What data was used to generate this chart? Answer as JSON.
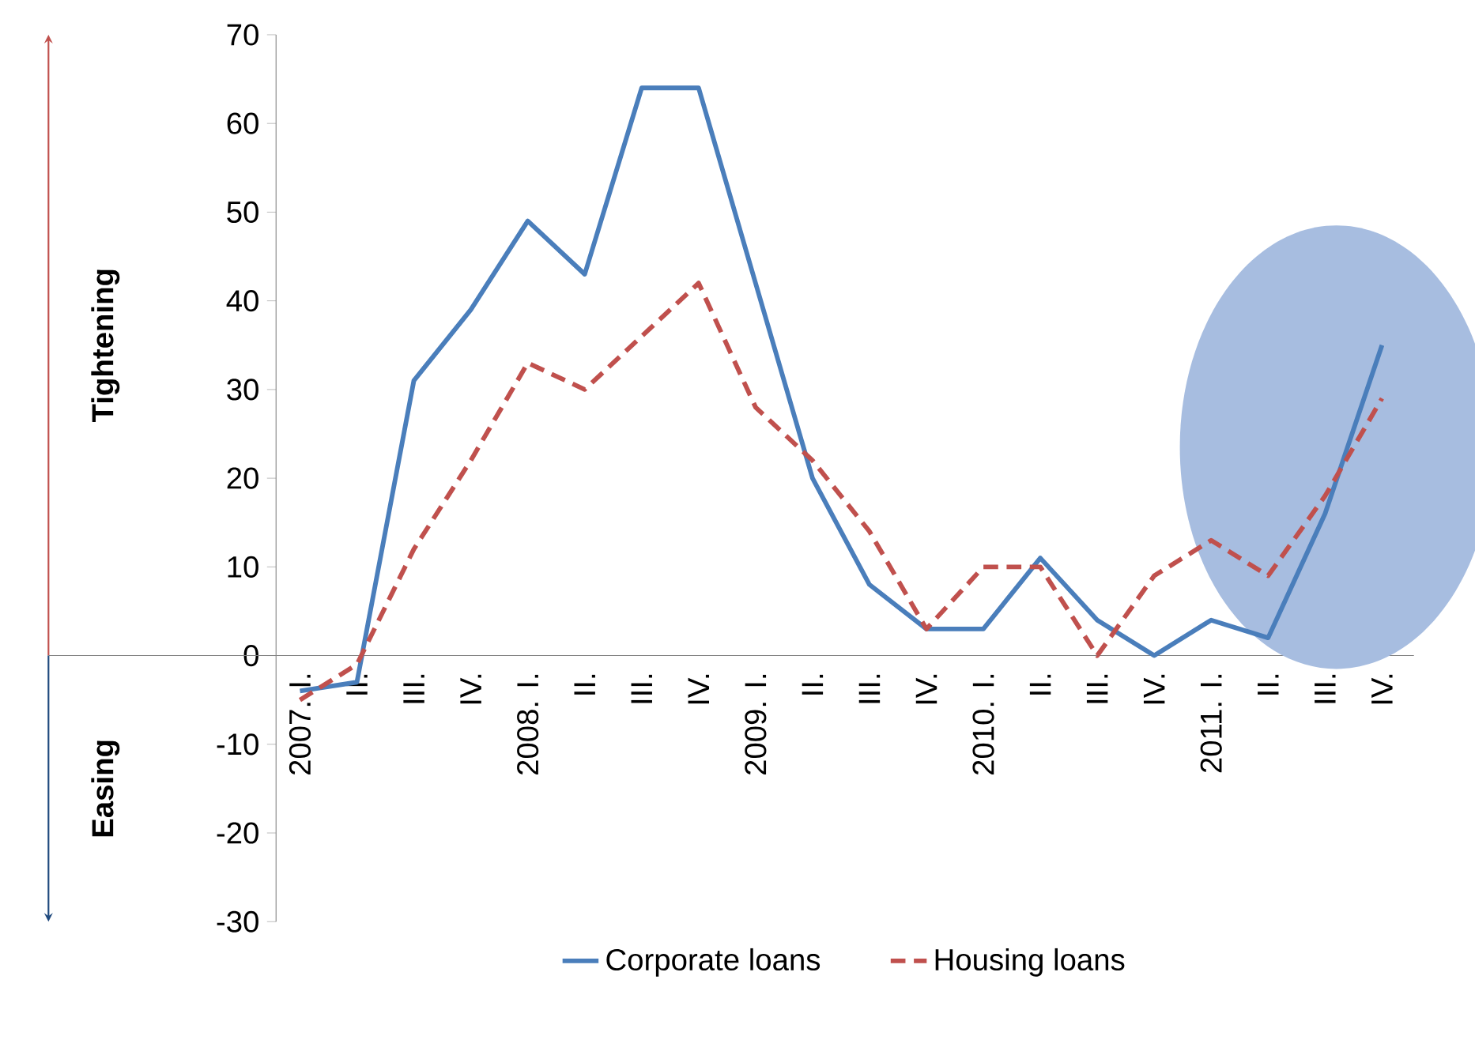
{
  "chart_data": {
    "type": "line",
    "categories": [
      "2007. I.",
      "II.",
      "III.",
      "IV.",
      "2008. I.",
      "II.",
      "III.",
      "IV.",
      "2009. I.",
      "II.",
      "III.",
      "IV.",
      "2010. I.",
      "II.",
      "III.",
      "IV.",
      "2011. I.",
      "II.",
      "III.",
      "IV."
    ],
    "series": [
      {
        "name": "Corporate loans",
        "color": "#4a7ebb",
        "line_style": "solid",
        "values": [
          -4,
          -3,
          31,
          39,
          49,
          43,
          64,
          64,
          42,
          20,
          8,
          3,
          3,
          11,
          4,
          0,
          4,
          2,
          16,
          35
        ]
      },
      {
        "name": "Housing loans",
        "color": "#c0504d",
        "line_style": "dashed",
        "values": [
          -5,
          -1,
          12,
          22,
          33,
          30,
          36,
          42,
          28,
          22,
          14,
          3,
          10,
          10,
          0,
          9,
          13,
          9,
          18,
          29
        ]
      }
    ],
    "ylim": [
      -30,
      70
    ],
    "yticks": [
      -30,
      -20,
      -10,
      0,
      10,
      20,
      30,
      40,
      50,
      60,
      70
    ],
    "annotations": [
      "Tightening",
      "Easing"
    ],
    "legend": "bottom",
    "grid": false,
    "marker": "none"
  }
}
